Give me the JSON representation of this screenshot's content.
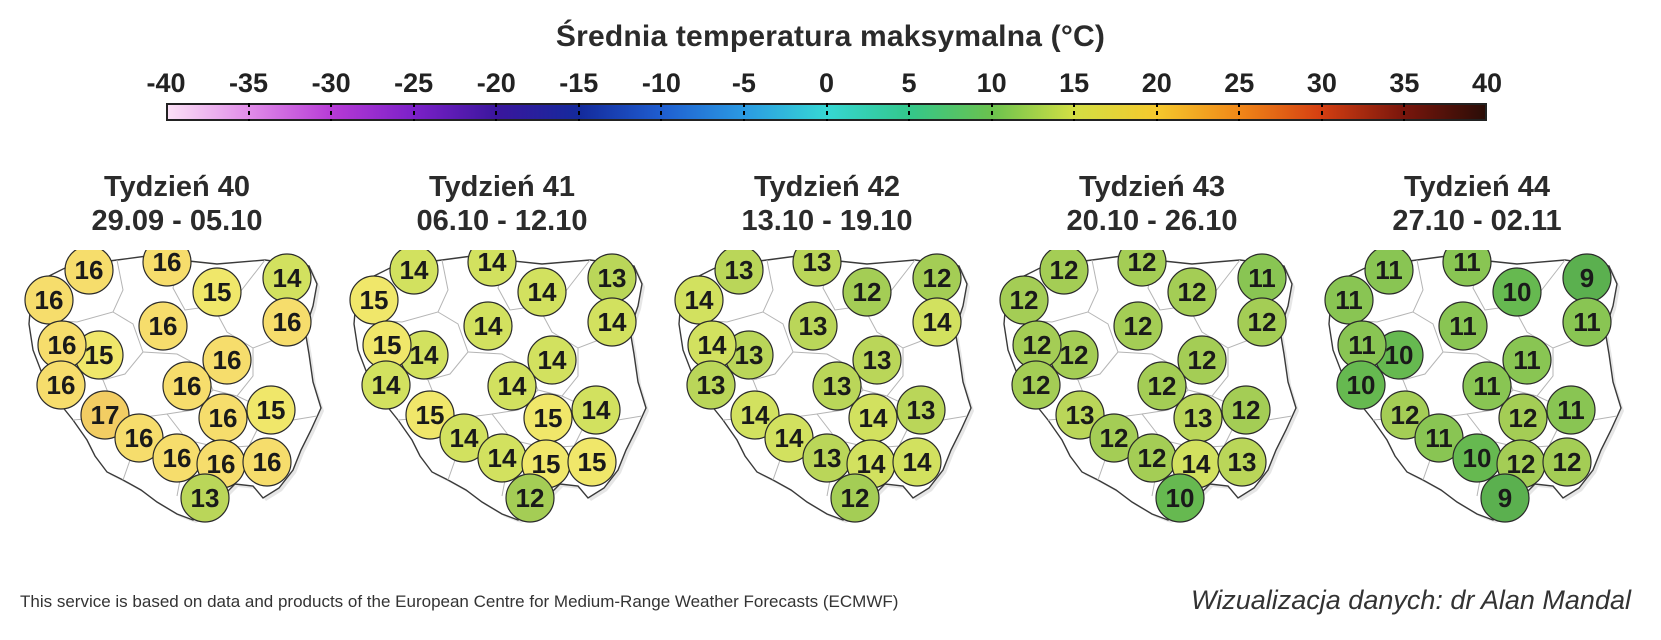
{
  "title": "Średnia temperatura maksymalna (°C)",
  "scale": {
    "labels": [
      "-40",
      "-35",
      "-30",
      "-25",
      "-20",
      "-15",
      "-10",
      "-5",
      "0",
      "5",
      "10",
      "15",
      "20",
      "25",
      "30",
      "35",
      "40"
    ],
    "min": -40,
    "max": 40
  },
  "maps": [
    {
      "week_label": "Tydzień 40",
      "date_range": "29.09 - 05.10",
      "values": [
        16,
        16,
        16,
        15,
        14,
        16,
        15,
        16,
        16,
        16,
        16,
        15,
        16,
        17,
        16,
        16,
        16,
        16,
        16,
        13
      ]
    },
    {
      "week_label": "Tydzień 41",
      "date_range": "06.10 - 12.10",
      "values": [
        14,
        14,
        15,
        14,
        13,
        14,
        14,
        14,
        15,
        14,
        14,
        14,
        14,
        15,
        15,
        14,
        14,
        15,
        15,
        12
      ]
    },
    {
      "week_label": "Tydzień 42",
      "date_range": "13.10 - 19.10",
      "values": [
        13,
        13,
        14,
        12,
        12,
        13,
        13,
        14,
        14,
        13,
        13,
        13,
        13,
        14,
        14,
        14,
        13,
        14,
        14,
        12
      ]
    },
    {
      "week_label": "Tydzień 43",
      "date_range": "20.10 - 26.10",
      "values": [
        12,
        12,
        12,
        12,
        11,
        12,
        12,
        12,
        12,
        12,
        12,
        12,
        12,
        13,
        13,
        12,
        12,
        14,
        13,
        10
      ]
    },
    {
      "week_label": "Tydzień 44",
      "date_range": "27.10 - 02.11",
      "values": [
        11,
        11,
        11,
        10,
        9,
        11,
        10,
        11,
        11,
        11,
        11,
        11,
        10,
        12,
        12,
        11,
        10,
        12,
        12,
        9
      ]
    }
  ],
  "colors": {
    "v9": "#5bb04f",
    "v10": "#66b950",
    "v11": "#89c553",
    "v12": "#a4cd55",
    "v13": "#bad659",
    "v14": "#d2e15f",
    "v15": "#f0e76a",
    "v16": "#f6dd6c",
    "v17": "#f2cd63"
  },
  "footer": {
    "attribution": "This service is based on data and products of the European Centre for Medium-Range Weather Forecasts (ECMWF)",
    "credit": "Wizualizacja danych: dr Alan Mandal"
  }
}
